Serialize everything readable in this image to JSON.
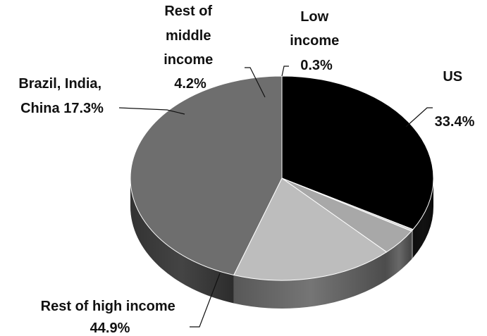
{
  "chart_data": {
    "type": "pie",
    "three_d": true,
    "categories": [
      "US",
      "Low income",
      "Rest of middle income",
      "Brazil, India, China",
      "Rest of high income"
    ],
    "values": [
      33.4,
      0.3,
      4.2,
      17.3,
      44.9
    ],
    "unit": "%",
    "colors": [
      "#000000",
      "#d4d4d4",
      "#a8a8a8",
      "#bdbdbd",
      "#6e6e6e"
    ],
    "labels": [
      {
        "lines": [
          "US",
          "33.4%"
        ]
      },
      {
        "lines": [
          "Low",
          "income",
          "0.3%"
        ]
      },
      {
        "lines": [
          "Rest of",
          "middle",
          "income",
          "4.2%"
        ]
      },
      {
        "lines": [
          "Brazil, India,",
          "China 17.3%"
        ]
      },
      {
        "lines": [
          "Rest of high income",
          "44.9%"
        ]
      }
    ]
  }
}
